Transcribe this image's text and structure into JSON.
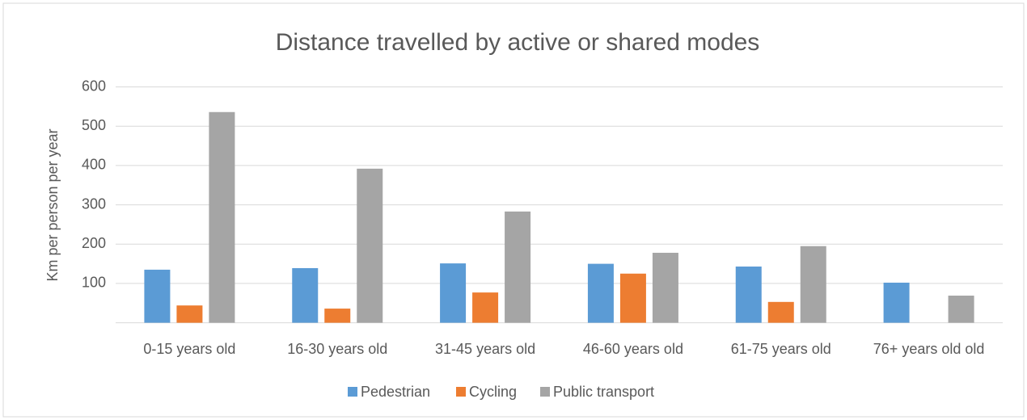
{
  "chart_data": {
    "type": "bar",
    "title": "Distance travelled by active or shared modes",
    "y_label": "Km per person per year",
    "categories": [
      "0-15 years old",
      "16-30 years old",
      "31-45 years old",
      "46-60 years old",
      "61-75 years old",
      "76+ years old old"
    ],
    "series": [
      {
        "name": "Pedestrian",
        "color": "#5b9bd5",
        "values": [
          135,
          139,
          151,
          150,
          143,
          102
        ]
      },
      {
        "name": "Cycling",
        "color": "#ed7d31",
        "values": [
          44,
          36,
          77,
          125,
          53,
          null
        ]
      },
      {
        "name": "Public transport",
        "color": "#a5a5a5",
        "values": [
          536,
          392,
          283,
          178,
          195,
          69
        ]
      }
    ],
    "ylim": [
      0,
      600
    ],
    "yticks": [
      100,
      200,
      300,
      400,
      500,
      600
    ],
    "grid": true,
    "legend": "bottom"
  }
}
